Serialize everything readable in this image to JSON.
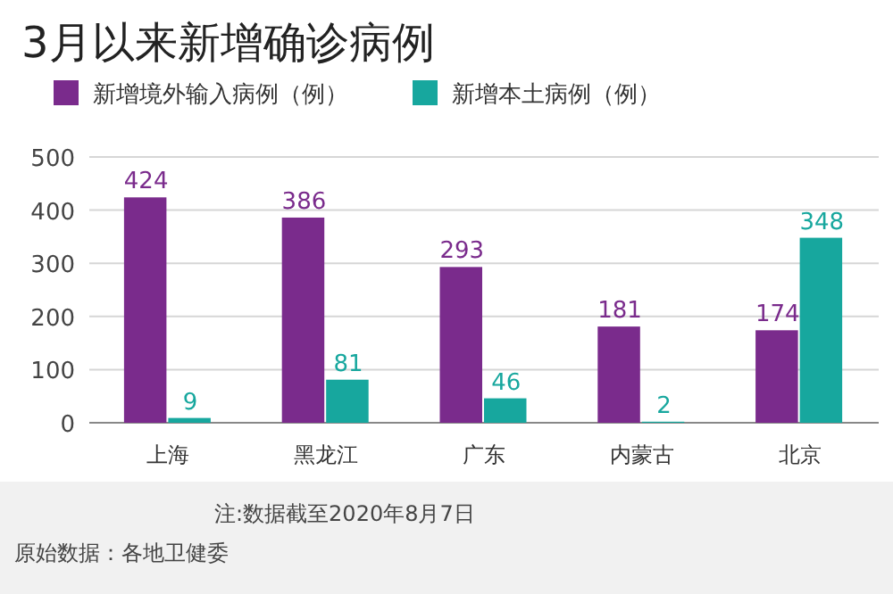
{
  "chart_data": {
    "type": "bar",
    "title": "3月以来新增确诊病例",
    "categories": [
      "上海",
      "黑龙江",
      "广东",
      "内蒙古",
      "北京"
    ],
    "series": [
      {
        "name": "新增境外输入病例（例）",
        "color": "#7a2b8c",
        "values": [
          424,
          386,
          293,
          181,
          174
        ]
      },
      {
        "name": "新增本土病例（例）",
        "color": "#17a79e",
        "values": [
          9,
          81,
          46,
          2,
          348
        ]
      }
    ],
    "ylim": [
      0,
      500
    ],
    "yticks": [
      0,
      100,
      200,
      300,
      400,
      500
    ],
    "grid": "y",
    "legend": "top",
    "data_labels": true,
    "annotations": [
      "注:数据截至2020年8月7日",
      "原始数据：各地卫健委"
    ]
  }
}
